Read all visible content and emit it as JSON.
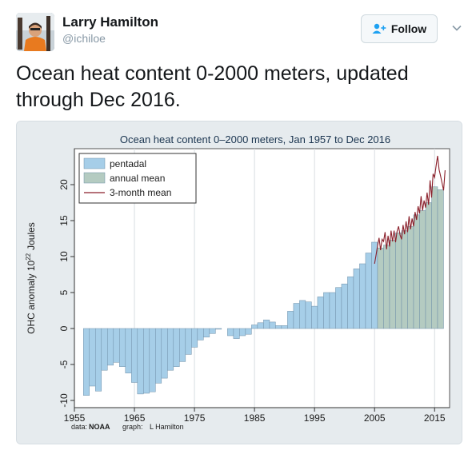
{
  "author": {
    "name": "Larry Hamilton",
    "handle": "@ichiloe"
  },
  "follow": {
    "label": "Follow",
    "icon": "add-user-icon"
  },
  "menu": {
    "icon": "chevron-down-icon"
  },
  "tweet": {
    "text": "Ocean heat content 0-2000 meters, updated through Dec 2016."
  },
  "colors": {
    "pentadal": "#a6cee8",
    "annual": "#b4cbc1",
    "line": "#8a1f2a",
    "bar_edge": "#6f8fa8"
  },
  "chart_data": {
    "type": "bar",
    "title": "Ocean heat content 0–2000 meters, Jan 1957 to Dec 2016",
    "ylabel": "OHC anomaly 10^22 Joules",
    "ylabel_main": "OHC anomaly 10",
    "ylabel_exp": "22",
    "ylabel_unit": "Joules",
    "xlabel": "",
    "xlim": [
      1955,
      2017.5
    ],
    "ylim": [
      -11,
      25
    ],
    "x_ticks": [
      1955,
      1965,
      1975,
      1985,
      1995,
      2005,
      2015
    ],
    "y_ticks": [
      -10,
      -5,
      0,
      5,
      10,
      15,
      20
    ],
    "grid": "x",
    "legend_position": "top-left",
    "legend": [
      "pentadal",
      "annual mean",
      "3-month mean"
    ],
    "source": {
      "data_label": "data:",
      "data_value": "NOAA",
      "graph_label": "graph:",
      "graph_value": "L Hamilton"
    },
    "pentadal": {
      "x": [
        1957,
        1958,
        1959,
        1960,
        1961,
        1962,
        1963,
        1964,
        1965,
        1966,
        1967,
        1968,
        1969,
        1970,
        1971,
        1972,
        1973,
        1974,
        1975,
        1976,
        1977,
        1978,
        1979,
        1980,
        1981,
        1982,
        1983,
        1984,
        1985,
        1986,
        1987,
        1988,
        1989,
        1990,
        1991,
        1992,
        1993,
        1994,
        1995,
        1996,
        1997,
        1998,
        1999,
        2000,
        2001,
        2002,
        2003,
        2004,
        2005
      ],
      "values": [
        -9.3,
        -8.0,
        -8.7,
        -5.8,
        -5.1,
        -4.7,
        -5.3,
        -6.2,
        -7.5,
        -9.1,
        -9.0,
        -8.8,
        -7.6,
        -6.9,
        -5.8,
        -5.3,
        -4.6,
        -3.6,
        -2.6,
        -1.6,
        -1.2,
        -0.7,
        -0.1,
        0.0,
        -1.0,
        -1.4,
        -1.0,
        -0.8,
        0.5,
        0.8,
        1.2,
        0.9,
        0.4,
        0.4,
        2.4,
        3.5,
        3.9,
        3.7,
        3.1,
        4.4,
        5.0,
        5.0,
        5.7,
        6.2,
        7.2,
        8.3,
        9.0,
        10.5,
        12.0
      ]
    },
    "annual": {
      "x": [
        2006,
        2007,
        2008,
        2009,
        2010,
        2011,
        2012,
        2013,
        2014,
        2015,
        2016
      ],
      "values": [
        11.2,
        11.6,
        12.3,
        13.3,
        13.6,
        14.2,
        15.8,
        16.4,
        17.5,
        19.7,
        19.3
      ]
    },
    "three_month": {
      "x": [
        2005.0,
        2005.25,
        2005.5,
        2005.75,
        2006.0,
        2006.25,
        2006.5,
        2006.75,
        2007.0,
        2007.25,
        2007.5,
        2007.75,
        2008.0,
        2008.25,
        2008.5,
        2008.75,
        2009.0,
        2009.25,
        2009.5,
        2009.75,
        2010.0,
        2010.25,
        2010.5,
        2010.75,
        2011.0,
        2011.25,
        2011.5,
        2011.75,
        2012.0,
        2012.25,
        2012.5,
        2012.75,
        2013.0,
        2013.25,
        2013.5,
        2013.75,
        2014.0,
        2014.25,
        2014.5,
        2014.75,
        2015.0,
        2015.25,
        2015.5,
        2015.75,
        2016.0,
        2016.25,
        2016.5,
        2016.75
      ],
      "values": [
        9.0,
        10.2,
        11.5,
        12.6,
        10.9,
        12.4,
        12.1,
        13.4,
        11.0,
        12.9,
        11.4,
        13.6,
        12.1,
        13.6,
        12.0,
        13.5,
        14.2,
        13.0,
        12.4,
        14.4,
        13.1,
        14.9,
        13.4,
        15.6,
        13.8,
        15.3,
        14.2,
        16.2,
        15.1,
        17.0,
        16.0,
        18.4,
        16.4,
        17.8,
        16.8,
        18.9,
        17.2,
        20.6,
        18.2,
        21.5,
        21.0,
        22.6,
        24.0,
        22.1,
        21.2,
        20.2,
        19.2,
        22.0
      ]
    }
  }
}
